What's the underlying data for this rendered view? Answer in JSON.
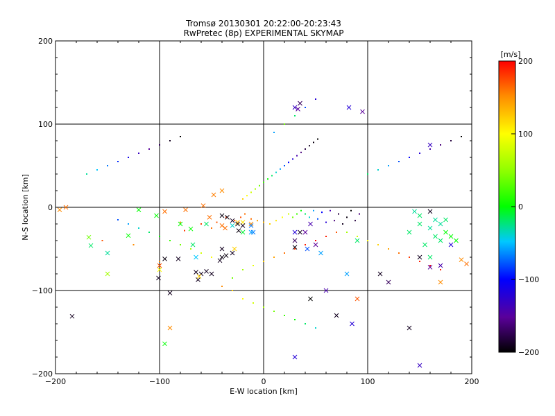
{
  "chart_data": {
    "type": "scatter",
    "title": "Tromsø 20130301 20:22:00-20:23:43",
    "subtitle": "RwPretec (8p) EXPERIMENTAL SKYMAP",
    "xlabel": "E-W location [km]",
    "ylabel": "N-S location [km]",
    "xlim": [
      -200,
      200
    ],
    "ylim": [
      -200,
      200
    ],
    "xticks": [
      -200,
      -100,
      0,
      100,
      200
    ],
    "yticks": [
      -200,
      -100,
      0,
      100,
      200
    ],
    "grid": true,
    "colorbar": {
      "label": "[m/s]",
      "range": [
        -200,
        200
      ],
      "ticks": [
        200,
        100,
        0,
        -100,
        -200
      ],
      "colormap": "rainbow-black-to-red"
    },
    "markers": {
      "cross": [
        [
          -95,
          -5,
          160
        ],
        [
          -75,
          -3,
          160
        ],
        [
          -40,
          20,
          150
        ],
        [
          -48,
          15,
          155
        ],
        [
          -58,
          2,
          160
        ],
        [
          -52,
          -12,
          160
        ],
        [
          -40,
          -22,
          160
        ],
        [
          -37,
          -25,
          160
        ],
        [
          -25,
          -18,
          130
        ],
        [
          -20,
          -18,
          110
        ],
        [
          -12,
          -20,
          150
        ],
        [
          -28,
          -50,
          120
        ],
        [
          -90,
          -145,
          150
        ],
        [
          -95,
          -164,
          0
        ],
        [
          -120,
          -3,
          0
        ],
        [
          -80,
          -20,
          0
        ],
        [
          -70,
          -26,
          0
        ],
        [
          -55,
          -20,
          -20
        ],
        [
          -30,
          -22,
          -40
        ],
        [
          -12,
          -22,
          -70
        ],
        [
          -10,
          -30,
          -70
        ],
        [
          -20,
          -30,
          -10
        ],
        [
          -12,
          -30,
          -60
        ],
        [
          -68,
          -45,
          -20
        ],
        [
          -65,
          -60,
          -50
        ],
        [
          -190,
          0,
          160
        ],
        [
          -196,
          -3,
          150
        ],
        [
          -168,
          -36,
          40
        ],
        [
          -166,
          -46,
          -20
        ],
        [
          -150,
          -55,
          -30
        ],
        [
          -130,
          -34,
          0
        ],
        [
          -103,
          -10,
          0
        ],
        [
          -40,
          -50,
          -190
        ],
        [
          -36,
          -58,
          -195
        ],
        [
          -30,
          -55,
          -190
        ],
        [
          -40,
          -60,
          -195
        ],
        [
          -42,
          -64,
          -190
        ],
        [
          -150,
          -80,
          60
        ],
        [
          -100,
          -75,
          100
        ],
        [
          -101,
          -85,
          -190
        ],
        [
          -95,
          -62,
          -195
        ],
        [
          -40,
          -10,
          -195
        ],
        [
          -35,
          -12,
          -195
        ],
        [
          -30,
          -16,
          -190
        ],
        [
          -25,
          -20,
          -195
        ],
        [
          -20,
          -22,
          -190
        ],
        [
          -24,
          -28,
          -195
        ],
        [
          -100,
          -70,
          170
        ],
        [
          -82,
          -62,
          -190
        ],
        [
          -63,
          -87,
          -190
        ],
        [
          -65,
          -78,
          -190
        ],
        [
          -60,
          -80,
          -190
        ],
        [
          -55,
          -77,
          -190
        ],
        [
          -50,
          -80,
          -190
        ],
        [
          -184,
          -131,
          -190
        ],
        [
          -90,
          -103,
          -190
        ],
        [
          -62,
          -83,
          120
        ],
        [
          30,
          -30,
          -120
        ],
        [
          30,
          -40,
          -170
        ],
        [
          30,
          -48,
          -195
        ],
        [
          50,
          -45,
          -150
        ],
        [
          35,
          -30,
          -190
        ],
        [
          40,
          -30,
          -150
        ],
        [
          45,
          -20,
          -140
        ],
        [
          42,
          -50,
          -80
        ],
        [
          55,
          -55,
          -60
        ],
        [
          45,
          -110,
          -200
        ],
        [
          60,
          -100,
          -140
        ],
        [
          80,
          -80,
          -60
        ],
        [
          85,
          -140,
          -120
        ],
        [
          90,
          -110,
          170
        ],
        [
          30,
          -180,
          -120
        ],
        [
          70,
          -130,
          -190
        ],
        [
          112,
          -80,
          -190
        ],
        [
          120,
          -90,
          -170
        ],
        [
          150,
          -60,
          -190
        ],
        [
          160,
          -72,
          -150
        ],
        [
          170,
          -70,
          -140
        ],
        [
          180,
          -45,
          -120
        ],
        [
          185,
          -40,
          0
        ],
        [
          190,
          -63,
          150
        ],
        [
          195,
          -68,
          160
        ],
        [
          160,
          -60,
          -20
        ],
        [
          165,
          -35,
          -20
        ],
        [
          170,
          -40,
          -20
        ],
        [
          175,
          -30,
          0
        ],
        [
          180,
          -35,
          0
        ],
        [
          150,
          -20,
          -20
        ],
        [
          155,
          -45,
          -20
        ],
        [
          160,
          -25,
          -30
        ],
        [
          165,
          -15,
          -30
        ],
        [
          170,
          -20,
          -30
        ],
        [
          175,
          -15,
          -20
        ],
        [
          145,
          -5,
          -30
        ],
        [
          140,
          -30,
          -20
        ],
        [
          150,
          -10,
          -20
        ],
        [
          160,
          -5,
          -190
        ],
        [
          30,
          120,
          -130
        ],
        [
          35,
          125,
          -170
        ],
        [
          33,
          118,
          -150
        ],
        [
          82,
          120,
          -120
        ],
        [
          95,
          115,
          -150
        ],
        [
          140,
          -145,
          -190
        ],
        [
          150,
          -190,
          -130
        ],
        [
          170,
          -90,
          150
        ],
        [
          160,
          75,
          -130
        ],
        [
          90,
          -40,
          -20
        ]
      ],
      "point": [
        [
          -155,
          -40,
          170
        ],
        [
          -125,
          -45,
          150
        ],
        [
          -100,
          -65,
          150
        ],
        [
          -80,
          -18,
          150
        ],
        [
          -76,
          -28,
          180
        ],
        [
          -60,
          -20,
          180
        ],
        [
          -50,
          -25,
          160
        ],
        [
          -45,
          -18,
          170
        ],
        [
          -36,
          -12,
          180
        ],
        [
          -28,
          -16,
          170
        ],
        [
          -22,
          -12,
          170
        ],
        [
          -18,
          -8,
          160
        ],
        [
          -12,
          -14,
          160
        ],
        [
          -6,
          -16,
          140
        ],
        [
          0,
          -18,
          130
        ],
        [
          6,
          -20,
          120
        ],
        [
          12,
          -16,
          110
        ],
        [
          18,
          -12,
          100
        ],
        [
          24,
          -8,
          80
        ],
        [
          28,
          -12,
          40
        ],
        [
          32,
          -8,
          20
        ],
        [
          36,
          -4,
          0
        ],
        [
          40,
          -8,
          -20
        ],
        [
          44,
          -12,
          -40
        ],
        [
          48,
          -4,
          -60
        ],
        [
          52,
          -14,
          -80
        ],
        [
          56,
          -6,
          -100
        ],
        [
          60,
          -18,
          -120
        ],
        [
          64,
          -4,
          -140
        ],
        [
          68,
          -16,
          -160
        ],
        [
          72,
          -8,
          -180
        ],
        [
          76,
          -20,
          -190
        ],
        [
          80,
          -12,
          -195
        ],
        [
          84,
          -4,
          -200
        ],
        [
          88,
          -16,
          -180
        ],
        [
          92,
          -8,
          -160
        ],
        [
          -20,
          10,
          120
        ],
        [
          -16,
          14,
          100
        ],
        [
          -12,
          18,
          80
        ],
        [
          -8,
          22,
          60
        ],
        [
          -4,
          26,
          40
        ],
        [
          0,
          30,
          20
        ],
        [
          4,
          34,
          0
        ],
        [
          8,
          38,
          -20
        ],
        [
          12,
          42,
          -40
        ],
        [
          16,
          46,
          -60
        ],
        [
          20,
          50,
          -80
        ],
        [
          24,
          54,
          -100
        ],
        [
          28,
          58,
          -120
        ],
        [
          32,
          62,
          -140
        ],
        [
          36,
          66,
          -160
        ],
        [
          40,
          70,
          -180
        ],
        [
          44,
          74,
          -190
        ],
        [
          48,
          78,
          -195
        ],
        [
          52,
          82,
          -200
        ],
        [
          10,
          90,
          -60
        ],
        [
          20,
          100,
          40
        ],
        [
          30,
          110,
          -20
        ],
        [
          40,
          120,
          -80
        ],
        [
          50,
          130,
          -120
        ],
        [
          -30,
          -85,
          40
        ],
        [
          -20,
          -75,
          60
        ],
        [
          -10,
          -70,
          90
        ],
        [
          0,
          -65,
          120
        ],
        [
          10,
          -60,
          140
        ],
        [
          20,
          -55,
          160
        ],
        [
          30,
          -50,
          180
        ],
        [
          40,
          -45,
          190
        ],
        [
          50,
          -40,
          200
        ],
        [
          60,
          -35,
          190
        ],
        [
          70,
          -30,
          170
        ],
        [
          -40,
          -95,
          150
        ],
        [
          -30,
          -100,
          120
        ],
        [
          -20,
          -110,
          100
        ],
        [
          -10,
          -115,
          80
        ],
        [
          0,
          -120,
          60
        ],
        [
          10,
          -125,
          40
        ],
        [
          20,
          -130,
          20
        ],
        [
          30,
          -135,
          0
        ],
        [
          40,
          -140,
          -20
        ],
        [
          50,
          -145,
          -40
        ],
        [
          -50,
          -60,
          100
        ],
        [
          -60,
          -55,
          80
        ],
        [
          -70,
          -50,
          60
        ],
        [
          -80,
          -45,
          40
        ],
        [
          -90,
          -40,
          20
        ],
        [
          -100,
          -35,
          0
        ],
        [
          -110,
          -30,
          -20
        ],
        [
          -120,
          -25,
          -40
        ],
        [
          -130,
          -20,
          -60
        ],
        [
          -140,
          -15,
          -80
        ],
        [
          80,
          -30,
          60
        ],
        [
          90,
          -35,
          80
        ],
        [
          100,
          -40,
          100
        ],
        [
          110,
          -45,
          120
        ],
        [
          120,
          -50,
          140
        ],
        [
          130,
          -55,
          160
        ],
        [
          140,
          -60,
          180
        ],
        [
          150,
          -65,
          190
        ],
        [
          160,
          -70,
          200
        ],
        [
          170,
          -75,
          190
        ],
        [
          -170,
          40,
          -30
        ],
        [
          -160,
          45,
          -50
        ],
        [
          -150,
          50,
          -70
        ],
        [
          -140,
          55,
          -90
        ],
        [
          -130,
          60,
          -110
        ],
        [
          -120,
          65,
          -130
        ],
        [
          -110,
          70,
          -150
        ],
        [
          -100,
          75,
          -170
        ],
        [
          -90,
          80,
          -190
        ],
        [
          -80,
          85,
          -200
        ],
        [
          100,
          40,
          -20
        ],
        [
          110,
          45,
          -40
        ],
        [
          120,
          50,
          -60
        ],
        [
          130,
          55,
          -80
        ],
        [
          140,
          60,
          -100
        ],
        [
          150,
          65,
          -120
        ],
        [
          160,
          70,
          -140
        ],
        [
          170,
          75,
          -160
        ],
        [
          180,
          80,
          -180
        ],
        [
          190,
          85,
          -200
        ]
      ]
    }
  }
}
